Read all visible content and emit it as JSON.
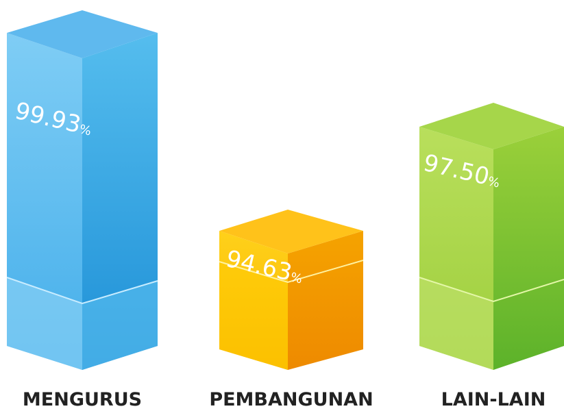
{
  "items": [
    {
      "label": "MENGURUS",
      "value": "99.93",
      "unit": "%"
    },
    {
      "label": "PEMBANGUNAN",
      "value": "94.63",
      "unit": "%"
    },
    {
      "label": "LAIN-LAIN",
      "value": "97.50",
      "unit": "%"
    }
  ]
}
